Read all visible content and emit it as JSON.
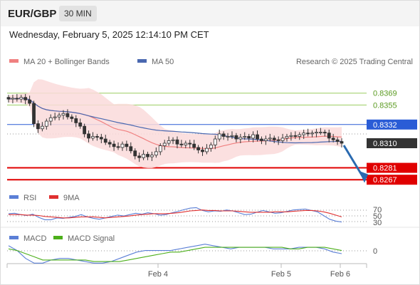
{
  "header": {
    "symbol": "EUR/GBP",
    "timeframe": "30 MIN",
    "datetime": "Wednesday, February 5, 2025 12:14:10 PM CET"
  },
  "colors": {
    "up": "#333333",
    "down": "#333333",
    "ma20": "#f08080",
    "bollinger_fill": "#fadada",
    "ma50": "#4a68b0",
    "resistance_green": "#9acd60",
    "pivot_blue": "#2a5cd6",
    "support_red": "#e00000",
    "current_price": "#333333",
    "rsi": "#5b7fd6",
    "rsi_ma": "#e03030",
    "macd": "#5b7fd6",
    "macd_signal": "#4caf1a",
    "arrow": "#2a6ab0"
  },
  "chart_data": [
    {
      "type": "candlestick",
      "title": "",
      "legend": [
        {
          "name": "MA 20 + Bollinger Bands",
          "color": "#f08080"
        },
        {
          "name": "MA 50",
          "color": "#4a68b0"
        }
      ],
      "watermark": "Research © 2025 Trading Central",
      "ylim": [
        0.8263,
        0.8378
      ],
      "x_ticks": [
        "Feb 4",
        "Feb 5",
        "Feb 6"
      ],
      "levels": [
        {
          "label": "0.8369",
          "value": 0.8369,
          "kind": "resistance"
        },
        {
          "label": "0.8355",
          "value": 0.8355,
          "kind": "resistance"
        },
        {
          "label": "0.8332",
          "value": 0.8332,
          "kind": "pivot"
        },
        {
          "label": "0.8310",
          "value": 0.831,
          "kind": "current"
        },
        {
          "label": "0.8281",
          "value": 0.8281,
          "kind": "support"
        },
        {
          "label": "0.8267",
          "value": 0.8267,
          "kind": "support"
        }
      ],
      "close_series": [
        0.8362,
        0.8363,
        0.8362,
        0.8364,
        0.8361,
        0.8357,
        0.8333,
        0.8327,
        0.833,
        0.8336,
        0.834,
        0.8341,
        0.8343,
        0.8345,
        0.8341,
        0.8339,
        0.8334,
        0.833,
        0.8321,
        0.8316,
        0.8318,
        0.8317,
        0.8315,
        0.8311,
        0.8309,
        0.8306,
        0.8305,
        0.8309,
        0.8306,
        0.8301,
        0.8295,
        0.8293,
        0.8297,
        0.8294,
        0.8296,
        0.83,
        0.8307,
        0.831,
        0.8313,
        0.8314,
        0.8309,
        0.8308,
        0.831,
        0.8309,
        0.8305,
        0.8302,
        0.83,
        0.8304,
        0.8308,
        0.8315,
        0.8321,
        0.8318,
        0.8318,
        0.8319,
        0.8315,
        0.8317,
        0.8318,
        0.8316,
        0.832,
        0.8315,
        0.8313,
        0.8315,
        0.8316,
        0.8314,
        0.8313,
        0.8316,
        0.8318,
        0.8319,
        0.8318,
        0.832,
        0.8322,
        0.8321,
        0.8322,
        0.8323,
        0.8323,
        0.8322,
        0.8316,
        0.8314,
        0.8312,
        0.831
      ]
    },
    {
      "type": "line",
      "title": "",
      "legend": [
        {
          "name": "RSI",
          "color": "#5b7fd6"
        },
        {
          "name": "9MA",
          "color": "#e03030"
        }
      ],
      "ylim": [
        20,
        80
      ],
      "y_ticks": [
        "70",
        "50",
        "30"
      ],
      "series": [
        {
          "name": "RSI",
          "values": [
            54,
            55,
            52,
            50,
            53,
            46,
            41,
            41,
            45,
            44,
            46,
            48,
            52,
            47,
            44,
            42,
            45,
            48,
            51,
            49,
            52,
            55,
            53,
            56,
            54,
            51,
            52,
            56,
            59,
            63,
            66,
            67,
            61,
            58,
            60,
            59,
            62,
            60,
            56,
            52,
            53,
            57,
            61,
            58,
            55,
            56,
            59,
            62,
            63,
            64,
            61,
            58,
            50,
            42,
            38,
            36
          ]
        },
        {
          "name": "9MA",
          "values": [
            52,
            52,
            52,
            51,
            51,
            50,
            48,
            47,
            46,
            45,
            45,
            46,
            47,
            47,
            47,
            46,
            45,
            46,
            47,
            48,
            49,
            51,
            52,
            53,
            54,
            54,
            54,
            55,
            56,
            58,
            60,
            61,
            62,
            61,
            61,
            60,
            60,
            60,
            59,
            58,
            57,
            57,
            57,
            57,
            58,
            58,
            58,
            59,
            60,
            61,
            61,
            60,
            58,
            55,
            51,
            47
          ]
        }
      ]
    },
    {
      "type": "line",
      "title": "",
      "legend": [
        {
          "name": "MACD",
          "color": "#5b7fd6"
        },
        {
          "name": "MACD Signal",
          "color": "#4caf1a"
        }
      ],
      "ylim": [
        -0.001,
        0.0008
      ],
      "y_ticks": [
        "0"
      ],
      "series": [
        {
          "name": "MACD",
          "values": [
            0.0004,
            0.0001,
            -0.0004,
            -0.0007,
            -0.0007,
            -0.0005,
            -0.0004,
            -0.0004,
            -0.0005,
            -0.0006,
            -0.0007,
            -0.0007,
            -0.0006,
            -0.0004,
            -0.0002,
            0.0,
            0.0001,
            0.0001,
            0.0001,
            0.0001,
            0.0002,
            0.0003,
            0.0004,
            0.0005,
            0.0004,
            0.0003,
            0.0002,
            0.0003,
            0.0003,
            0.0003,
            0.0003,
            0.0002,
            0.0002,
            0.0002,
            0.0003,
            0.0003,
            0.0003,
            0.0002,
            0.0,
            -0.0001
          ]
        },
        {
          "name": "MACD Signal",
          "values": [
            0.0002,
            0.0001,
            -0.0001,
            -0.0003,
            -0.0005,
            -0.0005,
            -0.0005,
            -0.0005,
            -0.0005,
            -0.0005,
            -0.0006,
            -0.0006,
            -0.0006,
            -0.0006,
            -0.0005,
            -0.0004,
            -0.0003,
            -0.0002,
            -0.0001,
            0.0,
            0.0,
            0.0001,
            0.0002,
            0.0003,
            0.0003,
            0.0003,
            0.0003,
            0.0003,
            0.0003,
            0.0003,
            0.0003,
            0.0003,
            0.0003,
            0.0002,
            0.0002,
            0.0003,
            0.0003,
            0.0003,
            0.0002,
            0.0001
          ]
        }
      ]
    }
  ]
}
